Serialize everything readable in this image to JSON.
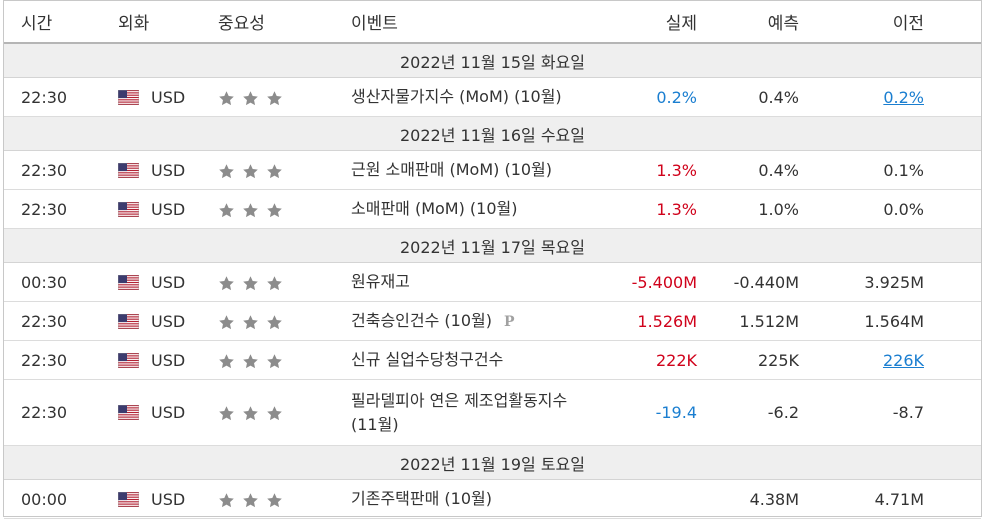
{
  "header": {
    "time": "시간",
    "currency": "외화",
    "importance": "중요성",
    "event": "이벤트",
    "actual": "실제",
    "forecast": "예측",
    "previous": "이전"
  },
  "colors": {
    "blue": "#1a7ed0",
    "red": "#d0021b",
    "star": "#8c8c8c"
  },
  "rows": [
    {
      "type": "date",
      "label": "2022년 11월 15일 화요일"
    },
    {
      "type": "event",
      "time": "22:30",
      "currency": "USD",
      "flag": "us-flag-icon",
      "stars": 3,
      "event": "생산자물가지수 (MoM) (10월)",
      "actual": "0.2%",
      "actual_color": "blue",
      "forecast": "0.4%",
      "previous": "0.2%",
      "previous_link": true
    },
    {
      "type": "date",
      "label": "2022년 11월 16일 수요일"
    },
    {
      "type": "event",
      "time": "22:30",
      "currency": "USD",
      "flag": "us-flag-icon",
      "stars": 3,
      "event": "근원 소매판매 (MoM) (10월)",
      "actual": "1.3%",
      "actual_color": "red",
      "forecast": "0.4%",
      "previous": "0.1%",
      "previous_link": false
    },
    {
      "type": "event",
      "time": "22:30",
      "currency": "USD",
      "flag": "us-flag-icon",
      "stars": 3,
      "event": "소매판매 (MoM) (10월)",
      "actual": "1.3%",
      "actual_color": "red",
      "forecast": "1.0%",
      "previous": "0.0%",
      "previous_link": false
    },
    {
      "type": "date",
      "label": "2022년 11월 17일 목요일"
    },
    {
      "type": "event",
      "time": "00:30",
      "currency": "USD",
      "flag": "us-flag-icon",
      "stars": 3,
      "event": "원유재고",
      "actual": "-5.400M",
      "actual_color": "red",
      "forecast": "-0.440M",
      "previous": "3.925M",
      "previous_link": false
    },
    {
      "type": "event",
      "time": "22:30",
      "currency": "USD",
      "flag": "us-flag-icon",
      "stars": 3,
      "event": "건축승인건수 (10월)",
      "badge": "P",
      "actual": "1.526M",
      "actual_color": "red",
      "forecast": "1.512M",
      "previous": "1.564M",
      "previous_link": false
    },
    {
      "type": "event",
      "time": "22:30",
      "currency": "USD",
      "flag": "us-flag-icon",
      "stars": 3,
      "event": "신규 실업수당청구건수",
      "actual": "222K",
      "actual_color": "red",
      "forecast": "225K",
      "previous": "226K",
      "previous_link": true
    },
    {
      "type": "event",
      "time": "22:30",
      "currency": "USD",
      "flag": "us-flag-icon",
      "stars": 3,
      "event": "필라델피아 연은 제조업활동지수 (11월)",
      "actual": "-19.4",
      "actual_color": "blue",
      "forecast": "-6.2",
      "previous": "-8.7",
      "previous_link": false,
      "tall": true
    },
    {
      "type": "date",
      "label": "2022년 11월 19일 토요일"
    },
    {
      "type": "event",
      "time": "00:00",
      "currency": "USD",
      "flag": "us-flag-icon",
      "stars": 3,
      "event": "기존주택판매 (10월)",
      "actual": "",
      "actual_color": "",
      "forecast": "4.38M",
      "previous": "4.71M",
      "previous_link": false
    }
  ]
}
